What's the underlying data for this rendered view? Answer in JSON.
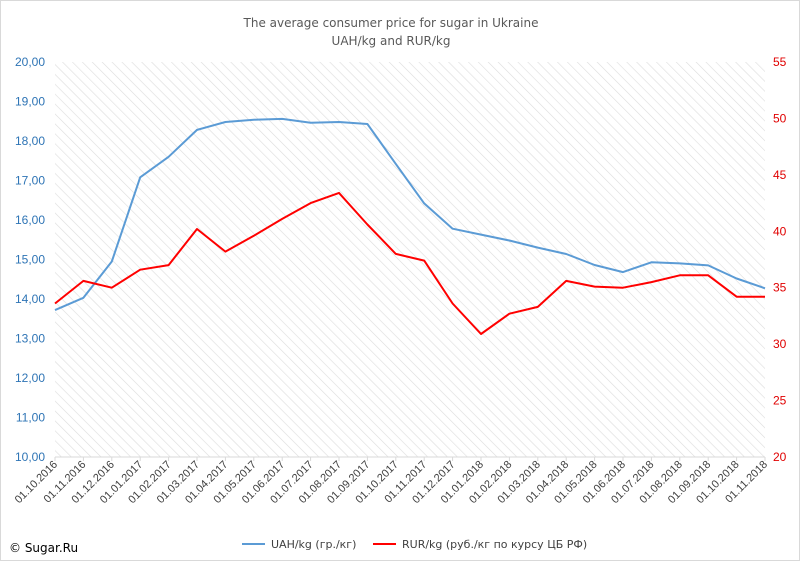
{
  "chart_data": {
    "type": "line",
    "title": "The average consumer price for sugar in Ukraine",
    "subtitle": "UAH/kg and RUR/kg",
    "categories": [
      "01.10.2016",
      "01.11.2016",
      "01.12.2016",
      "01.01.2017",
      "01.02.2017",
      "01.03.2017",
      "01.04.2017",
      "01.05.2017",
      "01.06.2017",
      "01.07.2017",
      "01.08.2017",
      "01.09.2017",
      "01.10.2017",
      "01.11.2017",
      "01.12.2017",
      "01.01.2018",
      "01.02.2018",
      "01.03.2018",
      "01.04.2018",
      "01.05.2018",
      "01.06.2018",
      "01.07.2018",
      "01.08.2018",
      "01.09.2018",
      "01.10.2018",
      "01.11.2018"
    ],
    "series": [
      {
        "name": "UAH/kg  (гр./кг)",
        "axis": "left",
        "color": "#5b9bd5",
        "values": [
          13.72,
          14.03,
          14.95,
          17.08,
          17.6,
          18.28,
          18.48,
          18.54,
          18.56,
          18.46,
          18.48,
          18.43,
          17.42,
          16.42,
          15.78,
          15.63,
          15.48,
          15.3,
          15.14,
          14.86,
          14.68,
          14.93,
          14.9,
          14.85,
          14.52,
          14.27
        ]
      },
      {
        "name": "RUR/kg (руб./кг по курсу ЦБ РФ)",
        "axis": "right",
        "color": "#ff0000",
        "values": [
          33.6,
          35.6,
          35.0,
          36.6,
          37.0,
          40.2,
          38.2,
          39.6,
          41.1,
          42.5,
          43.4,
          40.6,
          38.0,
          37.4,
          33.6,
          30.9,
          32.7,
          33.3,
          35.6,
          35.1,
          35.0,
          35.5,
          36.1,
          36.1,
          34.2,
          34.2
        ]
      }
    ],
    "y_left": {
      "ylim": [
        10,
        20
      ],
      "ticks": [
        "10,00",
        "11,00",
        "12,00",
        "13,00",
        "14,00",
        "15,00",
        "16,00",
        "17,00",
        "18,00",
        "19,00",
        "20,00"
      ],
      "color": "#2e74b5"
    },
    "y_right": {
      "ylim": [
        20,
        55
      ],
      "ticks": [
        "20",
        "25",
        "30",
        "35",
        "40",
        "45",
        "50",
        "55"
      ],
      "color": "#e00000"
    },
    "grid": "diagonal hatch",
    "legend": "bottom-center"
  },
  "credit": "© Sugar.Ru"
}
